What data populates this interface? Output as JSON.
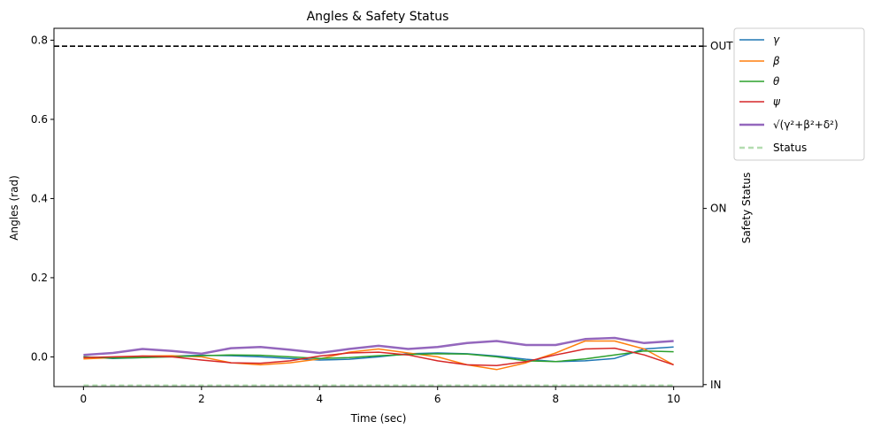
{
  "chart_data": {
    "type": "line",
    "title": "Angles & Safety Status",
    "xlabel": "Time (sec)",
    "ylabel": "Angles (rad)",
    "y2label": "Safety Status",
    "xlim": [
      -0.5,
      10.5
    ],
    "ylim": [
      -0.075,
      0.83
    ],
    "xticks": [
      0,
      2,
      4,
      6,
      8,
      10
    ],
    "yticks": [
      0.0,
      0.2,
      0.4,
      0.6,
      0.8
    ],
    "y2ticks": [
      {
        "value": 0.785,
        "label": "OUT"
      },
      {
        "value": 0.375,
        "label": "ON"
      },
      {
        "value": -0.07,
        "label": "IN"
      }
    ],
    "threshold": 0.785,
    "legend_position": "outside-top-right",
    "grid": false,
    "series": [
      {
        "name": "γ",
        "color": "#1f77b4",
        "width": 1.5,
        "dash": "",
        "x": [
          0,
          0.5,
          1,
          1.5,
          2,
          2.5,
          3,
          3.5,
          4,
          4.5,
          5,
          5.5,
          6,
          6.5,
          7,
          7.5,
          8,
          8.5,
          9,
          9.5,
          10
        ],
        "y": [
          0.0,
          -0.004,
          -0.002,
          0.002,
          0.004,
          0.003,
          0.0,
          -0.004,
          -0.008,
          -0.006,
          0.0,
          0.008,
          0.01,
          0.008,
          0.002,
          -0.006,
          -0.012,
          -0.01,
          -0.004,
          0.02,
          0.025
        ]
      },
      {
        "name": "β",
        "color": "#ff7f0e",
        "width": 1.5,
        "dash": "",
        "x": [
          0,
          0.5,
          1,
          1.5,
          2,
          2.5,
          3,
          3.5,
          4,
          4.5,
          5,
          5.5,
          6,
          6.5,
          7,
          7.5,
          8,
          8.5,
          9,
          9.5,
          10
        ],
        "y": [
          -0.005,
          -0.002,
          0.002,
          0.003,
          0.0,
          -0.015,
          -0.02,
          -0.015,
          -0.005,
          0.012,
          0.02,
          0.01,
          0.0,
          -0.02,
          -0.032,
          -0.015,
          0.01,
          0.04,
          0.04,
          0.02,
          -0.02
        ]
      },
      {
        "name": "θ",
        "color": "#2ca02c",
        "width": 1.5,
        "dash": "",
        "x": [
          0,
          0.5,
          1,
          1.5,
          2,
          2.5,
          3,
          3.5,
          4,
          4.5,
          5,
          5.5,
          6,
          6.5,
          7,
          7.5,
          8,
          8.5,
          9,
          9.5,
          10
        ],
        "y": [
          0.0,
          -0.003,
          -0.002,
          0.0,
          0.003,
          0.005,
          0.004,
          0.0,
          -0.004,
          -0.002,
          0.003,
          0.006,
          0.008,
          0.007,
          0.0,
          -0.01,
          -0.012,
          -0.005,
          0.005,
          0.015,
          0.013
        ]
      },
      {
        "name": "ψ",
        "color": "#d62728",
        "width": 1.5,
        "dash": "",
        "x": [
          0,
          0.5,
          1,
          1.5,
          2,
          2.5,
          3,
          3.5,
          4,
          4.5,
          5,
          5.5,
          6,
          6.5,
          7,
          7.5,
          8,
          8.5,
          9,
          9.5,
          10
        ],
        "y": [
          -0.002,
          0.0,
          0.002,
          0.0,
          -0.008,
          -0.015,
          -0.016,
          -0.01,
          0.002,
          0.01,
          0.012,
          0.005,
          -0.01,
          -0.02,
          -0.022,
          -0.012,
          0.005,
          0.02,
          0.022,
          0.005,
          -0.02
        ]
      },
      {
        "name": "√(γ²+β²+δ²)",
        "color": "#9467bd",
        "width": 2.5,
        "dash": "",
        "x": [
          0,
          0.5,
          1,
          1.5,
          2,
          2.5,
          3,
          3.5,
          4,
          4.5,
          5,
          5.5,
          6,
          6.5,
          7,
          7.5,
          8,
          8.5,
          9,
          9.5,
          10
        ],
        "y": [
          0.005,
          0.01,
          0.02,
          0.015,
          0.008,
          0.022,
          0.025,
          0.018,
          0.01,
          0.02,
          0.028,
          0.02,
          0.025,
          0.035,
          0.04,
          0.03,
          0.03,
          0.045,
          0.048,
          0.035,
          0.04
        ]
      },
      {
        "name": "Status",
        "color": "#b3dcb0",
        "width": 2.5,
        "dash": "6,4",
        "x": [
          0,
          10
        ],
        "y": [
          -0.072,
          -0.072
        ]
      }
    ]
  }
}
